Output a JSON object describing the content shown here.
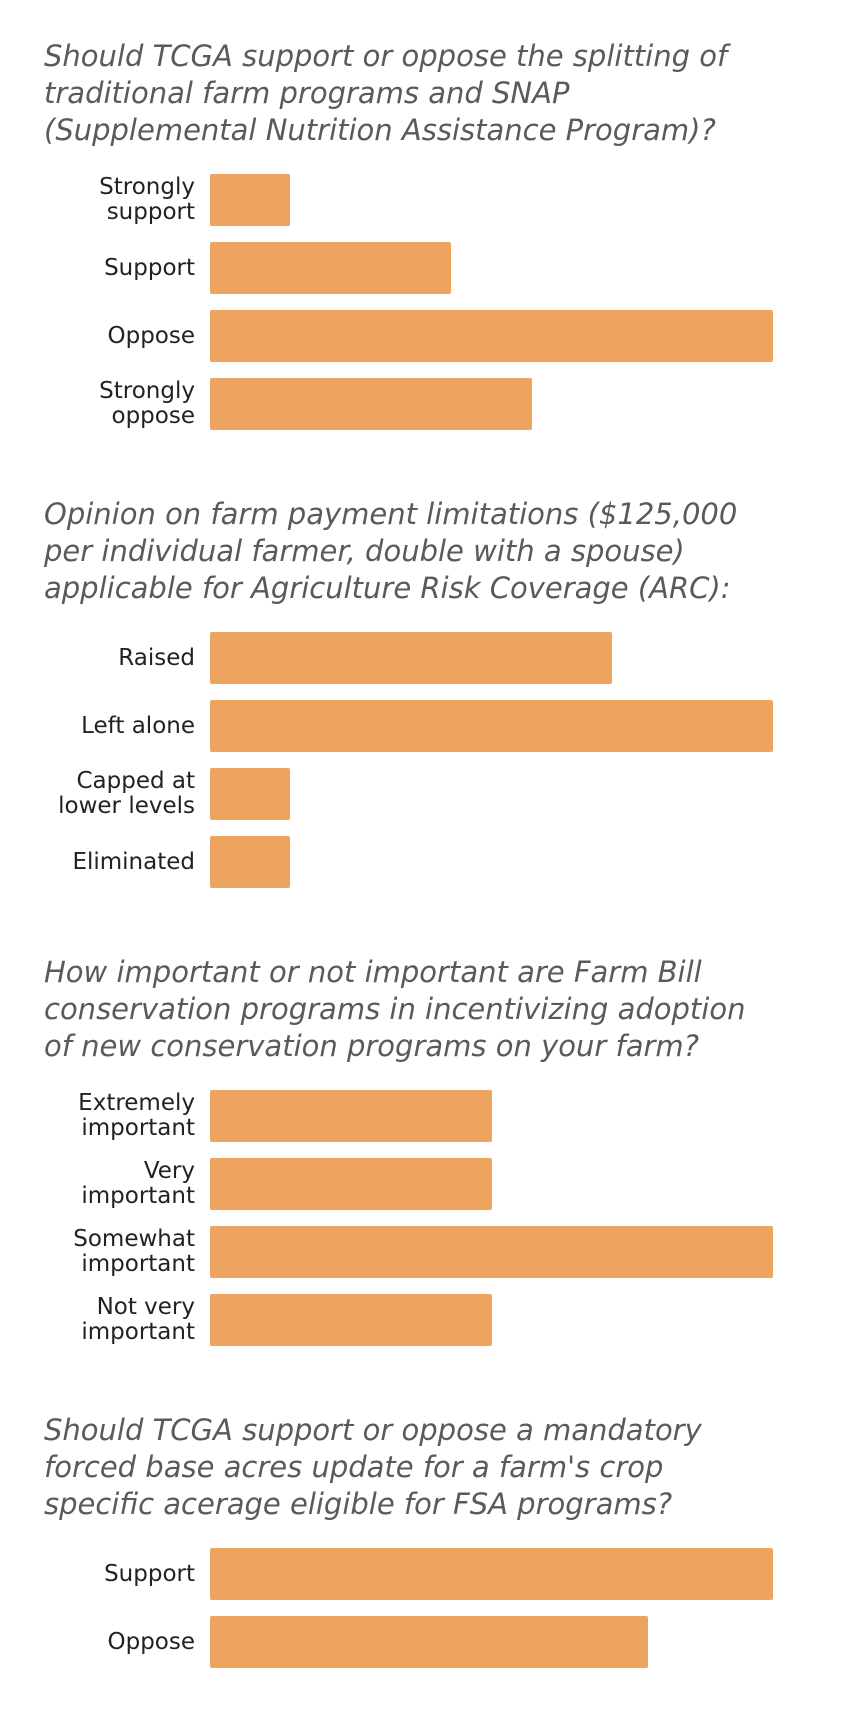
{
  "chart_data": [
    {
      "type": "bar",
      "orientation": "horizontal",
      "title": "Should TCGA support or oppose the splitting of traditional farm programs and SNAP (Supplemental Nutrition Assistance Program)?",
      "categories": [
        "Strongly support",
        "Support",
        "Oppose",
        "Strongly oppose"
      ],
      "values": [
        1,
        3,
        7,
        4
      ],
      "color": "#eca45f",
      "xlim": [
        0,
        7
      ]
    },
    {
      "type": "bar",
      "orientation": "horizontal",
      "title": "Opinion on farm payment limitations ($125,000 per individual farmer, double with a spouse) applicable for Agriculture Risk Coverage (ARC):",
      "categories": [
        "Raised",
        "Left alone",
        "Capped at lower levels",
        "Eliminated"
      ],
      "values": [
        5,
        7,
        1,
        1
      ],
      "color": "#eca45f",
      "xlim": [
        0,
        7
      ]
    },
    {
      "type": "bar",
      "orientation": "horizontal",
      "title": "How important or not important are Farm Bill conservation programs in incentivizing adoption of new conservation programs on your farm?",
      "categories": [
        "Extremely important",
        "Very important",
        "Somewhat important",
        "Not very important"
      ],
      "values": [
        1,
        1,
        2,
        1
      ],
      "color": "#eca45f",
      "xlim": [
        0,
        2
      ]
    },
    {
      "type": "bar",
      "orientation": "horizontal",
      "title": "Should TCGA support or oppose a mandatory forced base acres update for a farm's crop specific acerage eligible for FSA programs?",
      "categories": [
        "Support",
        "Oppose"
      ],
      "values": [
        9,
        7
      ],
      "color": "#eca45f",
      "xlim": [
        0,
        9
      ]
    }
  ]
}
